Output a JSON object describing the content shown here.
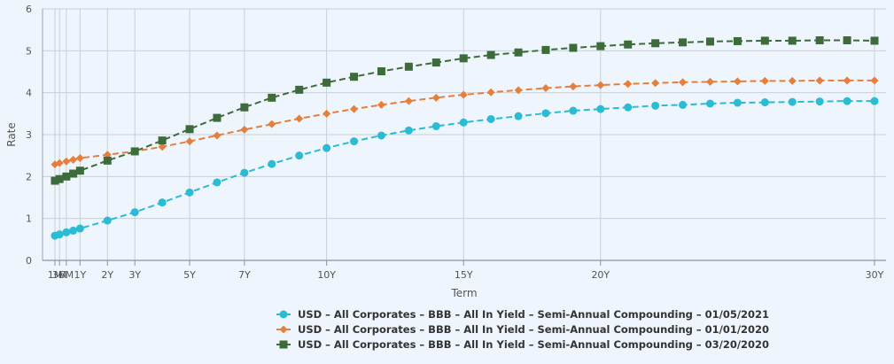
{
  "chart_data": {
    "type": "line",
    "xlabel": "Term",
    "ylabel": "Rate",
    "ylim": [
      0,
      6
    ],
    "yticks": [
      0,
      1,
      2,
      3,
      4,
      5,
      6
    ],
    "xlim": [
      0.0833,
      30
    ],
    "xticks": [
      {
        "value": 0.0833,
        "label": "1M"
      },
      {
        "value": 0.25,
        "label": "3M"
      },
      {
        "value": 0.5,
        "label": "6M"
      },
      {
        "value": 1,
        "label": "1Y"
      },
      {
        "value": 2,
        "label": "2Y"
      },
      {
        "value": 3,
        "label": "3Y"
      },
      {
        "value": 5,
        "label": "5Y"
      },
      {
        "value": 7,
        "label": "7Y"
      },
      {
        "value": 10,
        "label": "10Y"
      },
      {
        "value": 15,
        "label": "15Y"
      },
      {
        "value": 20,
        "label": "20Y"
      },
      {
        "value": 30,
        "label": "30Y"
      }
    ],
    "grid": true,
    "legend_position": "bottom",
    "x": [
      0.0833,
      0.25,
      0.5,
      0.75,
      1,
      2,
      3,
      4,
      5,
      6,
      7,
      8,
      9,
      10,
      11,
      12,
      13,
      14,
      15,
      16,
      17,
      18,
      19,
      20,
      21,
      22,
      23,
      24,
      25,
      26,
      27,
      28,
      29,
      30
    ],
    "series": [
      {
        "name": "USD – All Corporates – BBB – All In Yield – Semi-Annual Compounding – 01/05/2021",
        "color": "#2bbcd4",
        "marker": "circle",
        "values": [
          0.59,
          0.62,
          0.67,
          0.71,
          0.76,
          0.95,
          1.15,
          1.38,
          1.62,
          1.86,
          2.09,
          2.3,
          2.5,
          2.68,
          2.84,
          2.98,
          3.1,
          3.2,
          3.29,
          3.37,
          3.44,
          3.51,
          3.57,
          3.61,
          3.65,
          3.69,
          3.71,
          3.74,
          3.76,
          3.77,
          3.78,
          3.79,
          3.8,
          3.8
        ]
      },
      {
        "name": "USD – All Corporates – BBB – All In Yield – Semi-Annual Compounding – 01/01/2020",
        "color": "#e57f3d",
        "marker": "diamond",
        "values": [
          2.29,
          2.32,
          2.36,
          2.4,
          2.44,
          2.52,
          2.6,
          2.71,
          2.84,
          2.98,
          3.12,
          3.25,
          3.38,
          3.5,
          3.61,
          3.71,
          3.8,
          3.88,
          3.95,
          4.01,
          4.06,
          4.11,
          4.15,
          4.18,
          4.21,
          4.23,
          4.25,
          4.26,
          4.27,
          4.28,
          4.28,
          4.29,
          4.29,
          4.29
        ]
      },
      {
        "name": "USD – All Corporates – BBB – All In Yield – Semi-Annual Compounding – 03/20/2020",
        "color": "#3d6b3a",
        "marker": "square",
        "values": [
          1.9,
          1.94,
          2.0,
          2.07,
          2.14,
          2.38,
          2.6,
          2.86,
          3.13,
          3.4,
          3.65,
          3.88,
          4.07,
          4.24,
          4.38,
          4.51,
          4.62,
          4.72,
          4.82,
          4.9,
          4.96,
          5.02,
          5.07,
          5.11,
          5.15,
          5.18,
          5.2,
          5.22,
          5.23,
          5.24,
          5.24,
          5.25,
          5.25,
          5.24
        ]
      }
    ]
  }
}
